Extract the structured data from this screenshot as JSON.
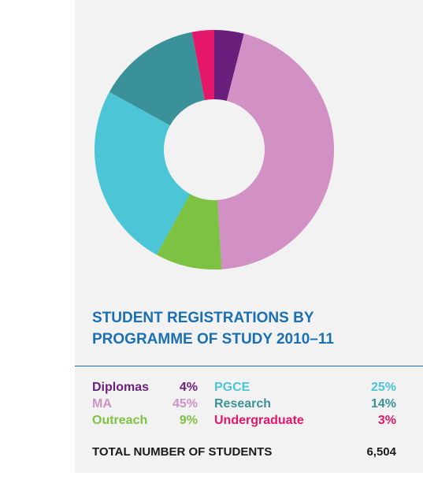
{
  "chart_data": {
    "type": "donut",
    "title": "STUDENT REGISTRATIONS BY PROGRAMME OF STUDY 2010–11",
    "categories": [
      "Diplomas",
      "MA",
      "Outreach",
      "PGCE",
      "Research",
      "Undergraduate"
    ],
    "values": [
      4,
      45,
      9,
      25,
      14,
      3
    ],
    "value_labels": [
      "4%",
      "45%",
      "9%",
      "25%",
      "14%",
      "3%"
    ],
    "colors": [
      "#6b1f7c",
      "#d291c4",
      "#7dc242",
      "#4cc5d6",
      "#3a9199",
      "#e5176b"
    ],
    "total_label": "TOTAL NUMBER OF STUDENTS",
    "total": {
      "value": 6504,
      "label": "6,504"
    }
  }
}
